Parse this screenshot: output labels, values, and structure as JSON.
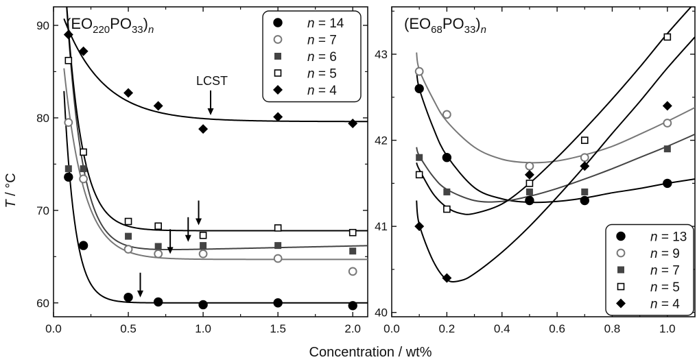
{
  "figure": {
    "xlabel": "Concentration / wt%",
    "ylabel_italic": "T",
    "ylabel_rest": " / °C"
  },
  "chart_data": [
    {
      "type": "scatter",
      "title_main": "(EO",
      "title_sub1": "220",
      "title_mid": "PO",
      "title_sub2": "33",
      "title_end": ")",
      "title_n": "n",
      "xlim": [
        0.0,
        2.1
      ],
      "ylim": [
        58.5,
        92.0
      ],
      "xticks": [
        0.0,
        0.5,
        1.0,
        1.5,
        2.0
      ],
      "xtick_labels": [
        "0.0",
        "0.5",
        "1.0",
        "1.5",
        "2.0"
      ],
      "yticks": [
        60,
        70,
        80,
        90
      ],
      "ytick_labels": [
        "60",
        "70",
        "80",
        "90"
      ],
      "legend_position": "top-right",
      "annotation": "LCST",
      "series": [
        {
          "name": "14",
          "marker": "circle-filled",
          "color": "#000000",
          "x": [
            0.1,
            0.2,
            0.5,
            0.7,
            1.0,
            1.5,
            2.0
          ],
          "y": [
            73.6,
            66.2,
            60.6,
            60.1,
            59.8,
            60.0,
            59.7
          ],
          "fit_plateau": 60.0,
          "fit_amp": 30,
          "fit_k": 13.5,
          "fit_lin": 0.0
        },
        {
          "name": "7",
          "marker": "circle-open",
          "color": "#777777",
          "x": [
            0.1,
            0.2,
            0.5,
            0.7,
            1.0,
            1.5,
            2.0
          ],
          "y": [
            79.5,
            73.4,
            65.8,
            65.3,
            65.3,
            64.8,
            63.4
          ],
          "fit_plateau": 64.7,
          "fit_amp": 24,
          "fit_k": 7.5,
          "fit_lin": 0.0
        },
        {
          "name": "6",
          "marker": "square-filled",
          "color": "#444444",
          "x": [
            0.1,
            0.2,
            0.5,
            0.7,
            1.0,
            1.5,
            2.0
          ],
          "y": [
            74.5,
            74.5,
            67.2,
            66.1,
            66.2,
            66.2,
            65.6
          ],
          "fit_plateau": 65.8,
          "fit_amp": 38,
          "fit_k": 9.5,
          "fit_lin": 0.35
        },
        {
          "name": "5",
          "marker": "square-open",
          "color": "#000000",
          "x": [
            0.1,
            0.2,
            0.5,
            0.7,
            1.0,
            1.5,
            2.0
          ],
          "y": [
            86.2,
            76.3,
            68.8,
            68.3,
            67.3,
            68.1,
            67.6
          ],
          "fit_plateau": 67.8,
          "fit_amp": 35,
          "fit_k": 9.5,
          "fit_lin": 0.0
        },
        {
          "name": "4",
          "marker": "diamond-filled",
          "color": "#000000",
          "x": [
            0.1,
            0.2,
            0.5,
            0.7,
            1.0,
            1.5,
            2.0
          ],
          "y": [
            89.0,
            87.2,
            82.7,
            81.3,
            78.8,
            80.1,
            79.4
          ],
          "fit_plateau": 79.6,
          "fit_amp": 12,
          "fit_k": 3.8,
          "fit_lin": 0.0
        }
      ],
      "lcst_arrows": [
        {
          "x": 0.58,
          "y_tip": 60.0
        },
        {
          "x": 0.78,
          "y_tip": 64.7
        },
        {
          "x": 0.9,
          "y_tip": 66.0
        },
        {
          "x": 0.97,
          "y_tip": 67.8
        },
        {
          "x": 1.05,
          "y_tip": 79.7
        }
      ]
    },
    {
      "type": "scatter",
      "title_main": "(EO",
      "title_sub1": "68",
      "title_mid": "PO",
      "title_sub2": "33",
      "title_end": ")",
      "title_n": "n",
      "xlim": [
        0.0,
        1.1
      ],
      "ylim": [
        39.95,
        43.55
      ],
      "xticks": [
        0.0,
        0.2,
        0.4,
        0.6,
        0.8,
        1.0
      ],
      "xtick_labels": [
        "0.0",
        "0.2",
        "0.4",
        "0.6",
        "0.8",
        "1.0"
      ],
      "yticks": [
        40,
        41,
        42,
        43
      ],
      "ytick_labels": [
        "40",
        "41",
        "42",
        "43"
      ],
      "legend_position": "bottom-right",
      "series": [
        {
          "name": "13",
          "marker": "circle-filled",
          "color": "#000000",
          "x": [
            0.1,
            0.2,
            0.5,
            0.7,
            1.0
          ],
          "y": [
            42.6,
            41.8,
            41.3,
            41.3,
            41.5
          ],
          "fit_x": [
            0.09,
            0.1,
            0.15,
            0.2,
            0.3,
            0.4,
            0.5,
            0.6,
            0.7,
            0.8,
            0.9,
            1.0,
            1.1
          ],
          "fit_y": [
            42.82,
            42.6,
            42.15,
            41.82,
            41.45,
            41.32,
            41.28,
            41.29,
            41.33,
            41.39,
            41.44,
            41.5,
            41.55
          ]
        },
        {
          "name": "9",
          "marker": "circle-open",
          "color": "#777777",
          "x": [
            0.1,
            0.2,
            0.5,
            0.7,
            1.0
          ],
          "y": [
            42.8,
            42.3,
            41.7,
            41.8,
            42.2
          ],
          "fit_x": [
            0.09,
            0.1,
            0.15,
            0.2,
            0.3,
            0.4,
            0.5,
            0.6,
            0.7,
            0.8,
            0.9,
            1.0,
            1.1
          ],
          "fit_y": [
            43.02,
            42.82,
            42.48,
            42.22,
            41.92,
            41.78,
            41.74,
            41.76,
            41.83,
            41.93,
            42.07,
            42.22,
            42.38
          ]
        },
        {
          "name": "7",
          "marker": "square-filled",
          "color": "#444444",
          "x": [
            0.1,
            0.2,
            0.5,
            0.7,
            1.0
          ],
          "y": [
            41.8,
            41.4,
            41.4,
            41.4,
            41.9
          ],
          "fit_x": [
            0.09,
            0.1,
            0.15,
            0.2,
            0.3,
            0.4,
            0.5,
            0.6,
            0.7,
            0.8,
            0.9,
            1.0,
            1.1
          ],
          "fit_y": [
            41.92,
            41.82,
            41.58,
            41.43,
            41.3,
            41.29,
            41.35,
            41.44,
            41.55,
            41.67,
            41.8,
            41.93,
            42.07
          ]
        },
        {
          "name": "5",
          "marker": "square-open",
          "color": "#000000",
          "x": [
            0.1,
            0.2,
            0.5,
            0.7,
            1.0
          ],
          "y": [
            41.6,
            41.2,
            41.5,
            42.0,
            43.2
          ],
          "fit_x": [
            0.09,
            0.1,
            0.15,
            0.2,
            0.25,
            0.3,
            0.4,
            0.5,
            0.6,
            0.7,
            0.8,
            0.9,
            1.0,
            1.1
          ],
          "fit_y": [
            41.74,
            41.66,
            41.38,
            41.22,
            41.15,
            41.15,
            41.26,
            41.5,
            41.8,
            42.13,
            42.48,
            42.85,
            43.24,
            43.6
          ]
        },
        {
          "name": "4",
          "marker": "diamond-filled",
          "color": "#000000",
          "x": [
            0.1,
            0.2,
            0.5,
            0.7,
            1.0
          ],
          "y": [
            41.0,
            40.4,
            41.6,
            41.7,
            42.4
          ],
          "fit_x": [
            0.09,
            0.1,
            0.15,
            0.2,
            0.25,
            0.3,
            0.4,
            0.5,
            0.6,
            0.7,
            0.8,
            0.9,
            1.0,
            1.1
          ],
          "fit_y": [
            41.3,
            41.02,
            40.6,
            40.38,
            40.37,
            40.45,
            40.7,
            41.0,
            41.34,
            41.7,
            42.08,
            42.45,
            42.84,
            43.2
          ]
        }
      ]
    }
  ],
  "colors": {
    "axis": "#111111",
    "legend_border": "#111111"
  }
}
